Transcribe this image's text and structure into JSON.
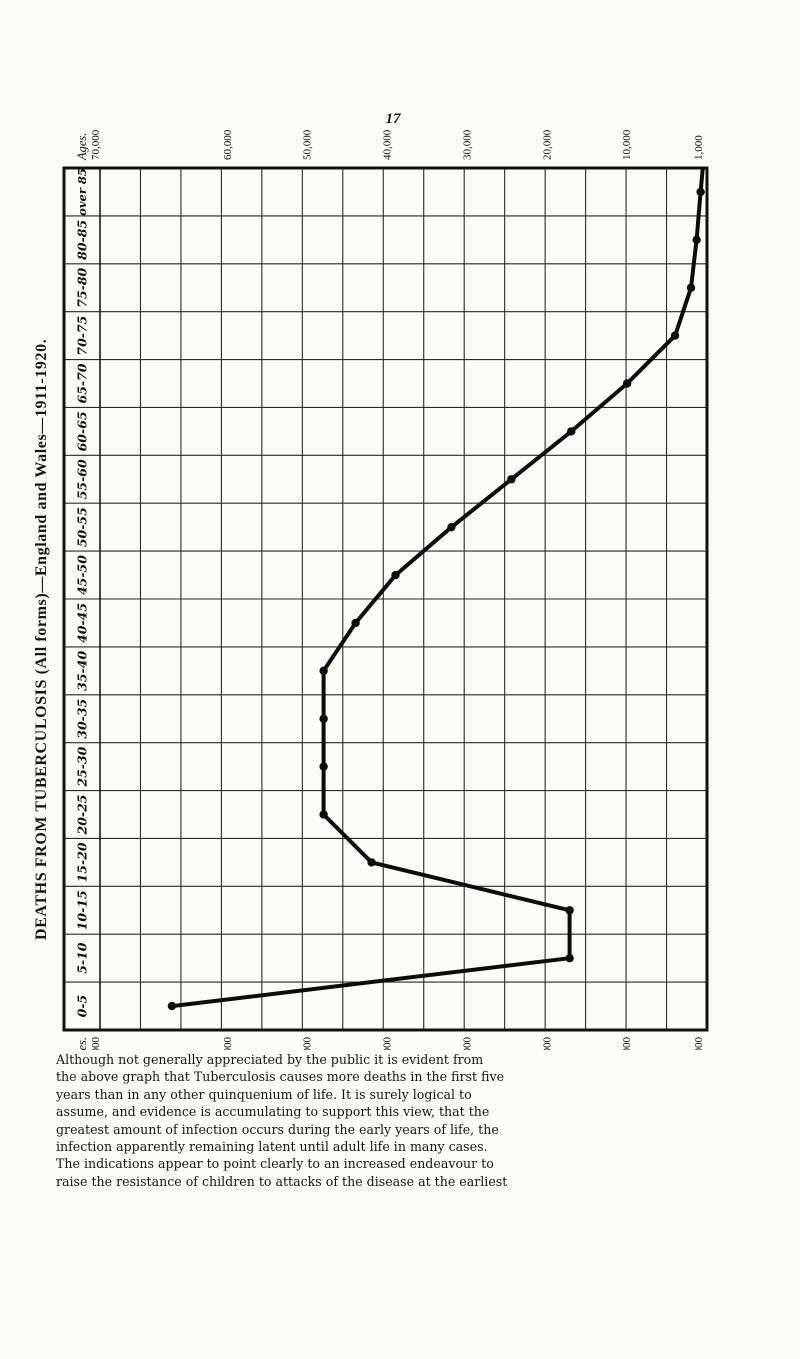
{
  "page_number": "17",
  "side_title": "DEATHS FROM TUBERCULOSIS (All forms)—England and Wales—1911-1920.",
  "chart_data": {
    "type": "line",
    "orientation": "vertical",
    "y_categories": [
      "over 85",
      "80-85",
      "75-80",
      "70-75",
      "65-70",
      "60-65",
      "55-60",
      "50-55",
      "45-50",
      "40-45",
      "35-40",
      "30-35",
      "25-30",
      "20-25",
      "15-20",
      "10-15",
      "5-10",
      "0-5"
    ],
    "x_scale_label": "Ages.",
    "x_ticks": [
      "70,000",
      "60,000",
      "50,000",
      "40,000",
      "30,000",
      "20,000",
      "10,000",
      "1,000"
    ],
    "x_tick_values": [
      70000,
      60000,
      50000,
      40000,
      30000,
      20000,
      10000,
      1000
    ],
    "xlim": [
      76000,
      0
    ],
    "series": [
      {
        "points": [
          {
            "age": "0-5",
            "deaths": 67000
          },
          {
            "age": "5-10",
            "deaths": 17200
          },
          {
            "age": "10-15",
            "deaths": 17200
          },
          {
            "age": "15-20",
            "deaths": 42000
          },
          {
            "age": "20-25",
            "deaths": 48000
          },
          {
            "age": "25-30",
            "deaths": 48000
          },
          {
            "age": "30-35",
            "deaths": 48000
          },
          {
            "age": "35-40",
            "deaths": 48000
          },
          {
            "age": "40-45",
            "deaths": 44000
          },
          {
            "age": "45-50",
            "deaths": 39000
          },
          {
            "age": "50-55",
            "deaths": 32000
          },
          {
            "age": "55-60",
            "deaths": 24500
          },
          {
            "age": "60-65",
            "deaths": 17000
          },
          {
            "age": "65-70",
            "deaths": 10000
          },
          {
            "age": "70-75",
            "deaths": 4000
          },
          {
            "age": "75-80",
            "deaths": 2000
          },
          {
            "age": "80-85",
            "deaths": 1300
          },
          {
            "age": "over 85",
            "deaths": 800
          }
        ]
      }
    ],
    "grid": true
  },
  "paragraph_lines": [
    "Although not generally appreciated by the public it is evident from",
    "the above graph that Tuberculosis causes more deaths in the first five",
    "years than in any other quinquenium of life.  It is surely logical to",
    "assume, and evidence is accumulating to support this view, that the",
    "greatest amount of infection occurs during the early years of life, the",
    "infection apparently remaining latent until adult life in many cases.",
    "The indications appear to point clearly to an increased endeavour to",
    "raise the resistance of children to attacks of the disease at the earliest"
  ]
}
